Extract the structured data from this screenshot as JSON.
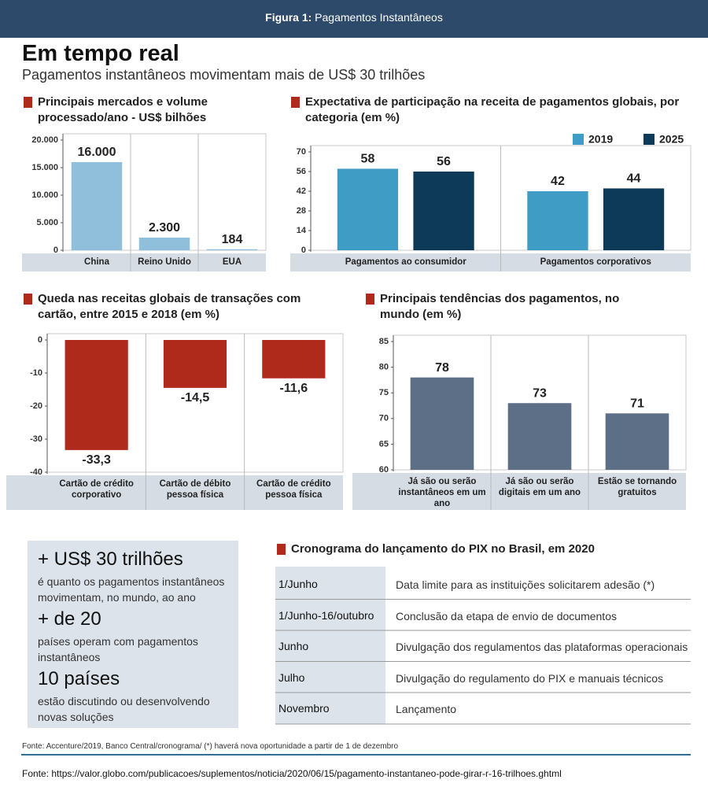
{
  "header": {
    "label": "Figura 1:",
    "title": "Pagamentos Instantâneos"
  },
  "title": "Em tempo real",
  "subtitle": "Pagamentos instantâneos movimentam mais de US$ 30 trilhões",
  "chart_data": [
    {
      "type": "bar",
      "title": "Principais mercados e volume processado/ano - US$ bilhões",
      "categories": [
        "China",
        "Reino Unido",
        "EUA"
      ],
      "values": [
        16000,
        2300,
        184
      ],
      "value_labels": [
        "16.000",
        "2.300",
        "184"
      ],
      "color": "#8fbfda",
      "ylim": [
        0,
        20000
      ],
      "yticks": [
        0,
        {
          "value": 5000,
          "label": "5.000"
        },
        {
          "value": 10000,
          "label": "10.000"
        },
        {
          "value": 15000,
          "label": "15.000"
        },
        {
          "value": 20000,
          "label": "20.000"
        }
      ],
      "grid": false
    },
    {
      "type": "bar",
      "title": "Expectativa de participação na receita de pagamentos globais, por categoria (em %)",
      "categories": [
        "Pagamentos ao consumidor",
        "Pagamentos corporativos"
      ],
      "series": [
        {
          "name": "2019",
          "color": "#3e9cc5",
          "values": [
            58,
            42
          ]
        },
        {
          "name": "2025",
          "color": "#0d3a59",
          "values": [
            56,
            44
          ]
        }
      ],
      "ylim": [
        0,
        70
      ],
      "yticks": [
        0,
        14,
        28,
        42,
        56,
        70
      ],
      "grid": false,
      "legend": "top-right"
    },
    {
      "type": "bar",
      "title": "Queda nas receitas globais de transações com cartão, entre 2015 e 2018 (em %)",
      "categories": [
        "Cartão de crédito corporativo",
        "Cartão de débito pessoa física",
        "Cartão de crédito pessoa física"
      ],
      "values": [
        -33.3,
        -14.5,
        -11.6
      ],
      "value_labels": [
        "-33,3",
        "-14,5",
        "-11,6"
      ],
      "color": "#b02a1c",
      "ylim": [
        -40,
        0
      ],
      "yticks": [
        -40,
        -30,
        -20,
        -10,
        0
      ],
      "grid": false
    },
    {
      "type": "bar",
      "title": "Principais tendências dos pagamentos, no mundo (em %)",
      "categories": [
        "Já são ou serão instantâneos em um ano",
        "Já são ou serão digitais em um ano",
        "Estão se tornando gratuitos"
      ],
      "values": [
        78,
        73,
        71
      ],
      "color": "#5d6e87",
      "ylim": [
        60,
        85
      ],
      "yticks": [
        60,
        65,
        70,
        75,
        80,
        85
      ],
      "grid": false
    }
  ],
  "stats": [
    {
      "headline": "+ US$ 30 trilhões",
      "text": "é quanto os pagamentos instantâneos movimentam, no mundo, ao ano"
    },
    {
      "headline": "+ de 20",
      "text": "países operam com pagamentos instantâneos"
    },
    {
      "headline": "10 países",
      "text": "estão discutindo ou desenvolvendo novas soluções"
    }
  ],
  "timeline": {
    "title": "Cronograma do lançamento do PIX no Brasil, em 2020",
    "rows": [
      [
        "1/Junho",
        "Data limite para as instituições solicitarem adesão (*)"
      ],
      [
        "1/Junho-16/outubro",
        "Conclusão da etapa de envio de documentos"
      ],
      [
        "Junho",
        "Divulgação dos regulamentos das plataformas operacionais"
      ],
      [
        "Julho",
        "Divulgação do regulamento do PIX e manuais técnicos"
      ],
      [
        "Novembro",
        "Lançamento"
      ]
    ]
  },
  "footer": {
    "note": "Fonte: Accenture/2019, Banco Central/cronograma/ (*) haverá nova oportunidade a partir de 1 de dezembro",
    "source": "Fonte: https://valor.globo.com/publicacoes/suplementos/noticia/2020/06/15/pagamento-instantaneo-pode-girar-r-16-trilhoes.ghtml"
  }
}
